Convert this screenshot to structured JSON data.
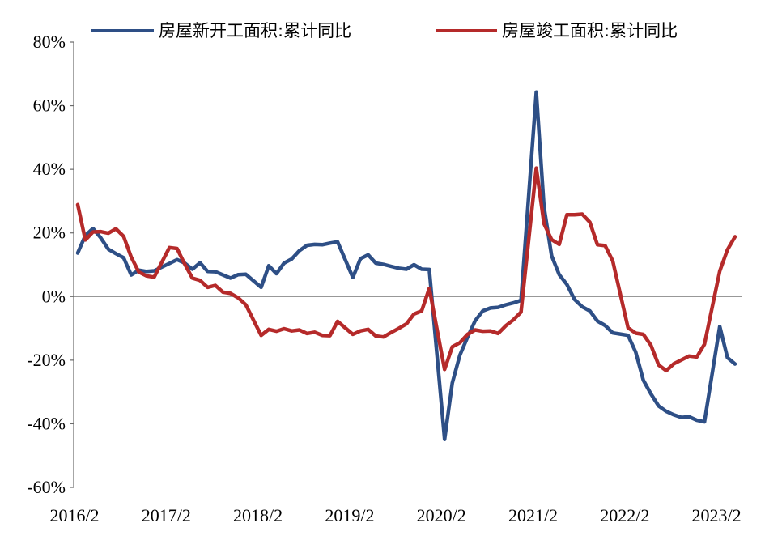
{
  "chart_data": {
    "type": "line",
    "title": "",
    "xlabel": "",
    "ylabel": "",
    "x_tick_labels": [
      "2016/2",
      "2017/2",
      "2018/2",
      "2019/2",
      "2020/2",
      "2021/2",
      "2022/2",
      "2023/2"
    ],
    "y_tick_labels": [
      "-60%",
      "-40%",
      "-20%",
      "0%",
      "20%",
      "40%",
      "60%",
      "80%"
    ],
    "y_ticks": [
      -60,
      -40,
      -20,
      0,
      20,
      40,
      60,
      80
    ],
    "ylim": [
      -60,
      80
    ],
    "x_start": "2016-02",
    "x_end": "2023-04",
    "grid": false,
    "zero_line": true,
    "legend_position": "top",
    "series": [
      {
        "name": "房屋新开工面积:累计同比",
        "color": "#2e4f86",
        "points": [
          [
            "2016-02",
            13.7
          ],
          [
            "2016-03",
            19.2
          ],
          [
            "2016-04",
            21.4
          ],
          [
            "2016-05",
            18.5
          ],
          [
            "2016-06",
            14.9
          ],
          [
            "2016-07",
            13.5
          ],
          [
            "2016-08",
            12.2
          ],
          [
            "2016-09",
            6.8
          ],
          [
            "2016-10",
            8.3
          ],
          [
            "2016-11",
            7.9
          ],
          [
            "2016-12",
            8.1
          ],
          [
            "2017-02",
            10.4
          ],
          [
            "2017-03",
            11.6
          ],
          [
            "2017-04",
            10.5
          ],
          [
            "2017-05",
            8.6
          ],
          [
            "2017-06",
            10.6
          ],
          [
            "2017-07",
            7.9
          ],
          [
            "2017-08",
            7.8
          ],
          [
            "2017-09",
            6.8
          ],
          [
            "2017-10",
            5.8
          ],
          [
            "2017-11",
            6.9
          ],
          [
            "2017-12",
            7.0
          ],
          [
            "2018-02",
            2.9
          ],
          [
            "2018-03",
            9.7
          ],
          [
            "2018-04",
            7.2
          ],
          [
            "2018-05",
            10.5
          ],
          [
            "2018-06",
            11.8
          ],
          [
            "2018-07",
            14.4
          ],
          [
            "2018-08",
            16.1
          ],
          [
            "2018-09",
            16.4
          ],
          [
            "2018-10",
            16.3
          ],
          [
            "2018-11",
            16.8
          ],
          [
            "2018-12",
            17.2
          ],
          [
            "2019-02",
            6.0
          ],
          [
            "2019-03",
            11.9
          ],
          [
            "2019-04",
            13.1
          ],
          [
            "2019-05",
            10.5
          ],
          [
            "2019-06",
            10.1
          ],
          [
            "2019-07",
            9.5
          ],
          [
            "2019-08",
            8.9
          ],
          [
            "2019-09",
            8.6
          ],
          [
            "2019-10",
            10.0
          ],
          [
            "2019-11",
            8.6
          ],
          [
            "2019-12",
            8.5
          ],
          [
            "2020-02",
            -44.9
          ],
          [
            "2020-03",
            -27.2
          ],
          [
            "2020-04",
            -18.4
          ],
          [
            "2020-05",
            -12.8
          ],
          [
            "2020-06",
            -7.6
          ],
          [
            "2020-07",
            -4.5
          ],
          [
            "2020-08",
            -3.6
          ],
          [
            "2020-09",
            -3.4
          ],
          [
            "2020-10",
            -2.6
          ],
          [
            "2020-11",
            -2.0
          ],
          [
            "2020-12",
            -1.2
          ],
          [
            "2021-02",
            64.3
          ],
          [
            "2021-03",
            28.2
          ],
          [
            "2021-04",
            12.8
          ],
          [
            "2021-05",
            6.9
          ],
          [
            "2021-06",
            3.8
          ],
          [
            "2021-07",
            -0.9
          ],
          [
            "2021-08",
            -3.2
          ],
          [
            "2021-09",
            -4.5
          ],
          [
            "2021-10",
            -7.7
          ],
          [
            "2021-11",
            -9.1
          ],
          [
            "2021-12",
            -11.4
          ],
          [
            "2022-02",
            -12.2
          ],
          [
            "2022-03",
            -17.5
          ],
          [
            "2022-04",
            -26.3
          ],
          [
            "2022-05",
            -30.6
          ],
          [
            "2022-06",
            -34.4
          ],
          [
            "2022-07",
            -36.1
          ],
          [
            "2022-08",
            -37.2
          ],
          [
            "2022-09",
            -38.0
          ],
          [
            "2022-10",
            -37.8
          ],
          [
            "2022-11",
            -38.9
          ],
          [
            "2022-12",
            -39.4
          ],
          [
            "2023-02",
            -9.4
          ],
          [
            "2023-03",
            -19.2
          ],
          [
            "2023-04",
            -21.2
          ]
        ]
      },
      {
        "name": "房屋竣工面积:累计同比",
        "color": "#b52a2a",
        "points": [
          [
            "2016-02",
            28.9
          ],
          [
            "2016-03",
            17.8
          ],
          [
            "2016-04",
            20.3
          ],
          [
            "2016-05",
            20.4
          ],
          [
            "2016-06",
            19.9
          ],
          [
            "2016-07",
            21.3
          ],
          [
            "2016-08",
            18.9
          ],
          [
            "2016-09",
            12.4
          ],
          [
            "2016-10",
            7.7
          ],
          [
            "2016-11",
            6.5
          ],
          [
            "2016-12",
            6.1
          ],
          [
            "2017-02",
            15.4
          ],
          [
            "2017-03",
            15.1
          ],
          [
            "2017-04",
            10.2
          ],
          [
            "2017-05",
            5.8
          ],
          [
            "2017-06",
            5.1
          ],
          [
            "2017-07",
            2.9
          ],
          [
            "2017-08",
            3.5
          ],
          [
            "2017-09",
            1.4
          ],
          [
            "2017-10",
            1.0
          ],
          [
            "2017-11",
            -0.4
          ],
          [
            "2017-12",
            -2.6
          ],
          [
            "2018-02",
            -12.2
          ],
          [
            "2018-03",
            -10.3
          ],
          [
            "2018-04",
            -10.9
          ],
          [
            "2018-05",
            -10.1
          ],
          [
            "2018-06",
            -10.8
          ],
          [
            "2018-07",
            -10.5
          ],
          [
            "2018-08",
            -11.6
          ],
          [
            "2018-09",
            -11.2
          ],
          [
            "2018-10",
            -12.2
          ],
          [
            "2018-11",
            -12.3
          ],
          [
            "2018-12",
            -7.8
          ],
          [
            "2019-02",
            -11.9
          ],
          [
            "2019-03",
            -10.8
          ],
          [
            "2019-04",
            -10.3
          ],
          [
            "2019-05",
            -12.4
          ],
          [
            "2019-06",
            -12.7
          ],
          [
            "2019-07",
            -11.3
          ],
          [
            "2019-08",
            -10.0
          ],
          [
            "2019-09",
            -8.6
          ],
          [
            "2019-10",
            -5.5
          ],
          [
            "2019-11",
            -4.5
          ],
          [
            "2019-12",
            2.6
          ],
          [
            "2020-02",
            -22.9
          ],
          [
            "2020-03",
            -15.8
          ],
          [
            "2020-04",
            -14.5
          ],
          [
            "2020-05",
            -11.9
          ],
          [
            "2020-06",
            -10.5
          ],
          [
            "2020-07",
            -10.9
          ],
          [
            "2020-08",
            -10.8
          ],
          [
            "2020-09",
            -11.6
          ],
          [
            "2020-10",
            -9.2
          ],
          [
            "2020-11",
            -7.3
          ],
          [
            "2020-12",
            -4.9
          ],
          [
            "2021-02",
            40.4
          ],
          [
            "2021-03",
            22.9
          ],
          [
            "2021-04",
            17.9
          ],
          [
            "2021-05",
            16.4
          ],
          [
            "2021-06",
            25.7
          ],
          [
            "2021-07",
            25.7
          ],
          [
            "2021-08",
            25.9
          ],
          [
            "2021-09",
            23.4
          ],
          [
            "2021-10",
            16.3
          ],
          [
            "2021-11",
            16.0
          ],
          [
            "2021-12",
            11.2
          ],
          [
            "2022-02",
            -9.8
          ],
          [
            "2022-03",
            -11.5
          ],
          [
            "2022-04",
            -11.9
          ],
          [
            "2022-05",
            -15.3
          ],
          [
            "2022-06",
            -21.5
          ],
          [
            "2022-07",
            -23.3
          ],
          [
            "2022-08",
            -21.1
          ],
          [
            "2022-09",
            -19.9
          ],
          [
            "2022-10",
            -18.7
          ],
          [
            "2022-11",
            -19.0
          ],
          [
            "2022-12",
            -15.0
          ],
          [
            "2023-02",
            8.0
          ],
          [
            "2023-03",
            14.7
          ],
          [
            "2023-04",
            18.8
          ]
        ]
      }
    ]
  }
}
